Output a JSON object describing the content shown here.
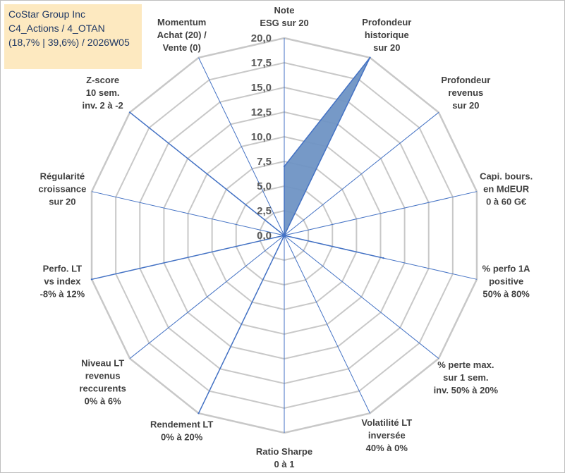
{
  "info": {
    "company": "CoStar Group Inc",
    "portfolio": "C4_Actions / 4_OTAN",
    "stats": "(18,7% | 39,6%) / 2026W05"
  },
  "colors": {
    "fill": "#6f94c4",
    "line": "#4472c4",
    "grid": "#c8c8c8",
    "info_bg": "#fde9c0"
  },
  "chart_data": {
    "type": "radar",
    "title": "",
    "rmax": 20,
    "ticks": [
      "0,0",
      "2,5",
      "5,0",
      "7,5",
      "10,0",
      "12,5",
      "15,0",
      "17,5",
      "20,0"
    ],
    "tick_values": [
      0,
      2.5,
      5,
      7.5,
      10,
      12.5,
      15,
      17.5,
      20
    ],
    "grid_steps": [
      2.5,
      5,
      7.5,
      10,
      12.5,
      15,
      17.5,
      20
    ],
    "axes": [
      {
        "label": [
          "Note",
          "ESG sur 20"
        ],
        "value": 7
      },
      {
        "label": [
          "Profondeur",
          "historique",
          "sur 20"
        ],
        "value": 20
      },
      {
        "label": [
          "Profondeur",
          "revenus",
          "sur 20"
        ],
        "value": 0
      },
      {
        "label": [
          "Capi. bours.",
          "en MdEUR",
          "0 à 60 G€"
        ],
        "value": 0
      },
      {
        "label": [
          "% perfo 1A",
          "positive",
          "50% à 80%"
        ],
        "value": 10.3
      },
      {
        "label": [
          "% perte max.",
          "sur 1 sem.",
          "inv. 50% à 20%"
        ],
        "value": 0
      },
      {
        "label": [
          "Volatilité LT",
          "inversée",
          "40% à 0%"
        ],
        "value": 0
      },
      {
        "label": [
          "Ratio Sharpe",
          "0 à 1"
        ],
        "value": 0
      },
      {
        "label": [
          "Rendement LT",
          "0% à 20%"
        ],
        "value": 20
      },
      {
        "label": [
          "Niveau LT",
          "revenus",
          "reccurents",
          "0% à 6%"
        ],
        "value": 0
      },
      {
        "label": [
          "Perfo. LT",
          "vs index",
          "-8% à 12%"
        ],
        "value": 20
      },
      {
        "label": [
          "Régularité",
          "croissance",
          "sur 20"
        ],
        "value": 0
      },
      {
        "label": [
          "Z-score",
          "10 sem.",
          "inv. 2 à -2"
        ],
        "value": 20
      },
      {
        "label": [
          "Momentum",
          "Achat (20) /",
          "Vente (0)"
        ],
        "value": 0
      }
    ],
    "series": [
      {
        "name": "CoStar Group Inc",
        "values": [
          7,
          20,
          0,
          0,
          10.3,
          0,
          0,
          0,
          20,
          0,
          20,
          0,
          20,
          0
        ]
      }
    ]
  }
}
